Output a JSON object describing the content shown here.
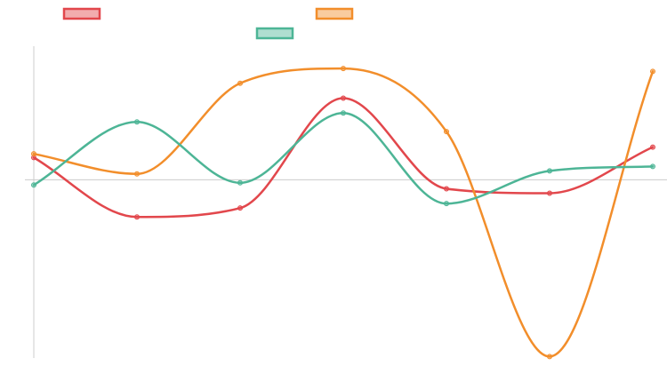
{
  "chart_data": {
    "type": "line",
    "title": "",
    "xlabel": "",
    "ylabel": "",
    "x": [
      0,
      1,
      2,
      3,
      4,
      5,
      6
    ],
    "grid": false,
    "legend": "top",
    "ylim": [
      -2.4,
      1.8
    ],
    "series": [
      {
        "color": "#e2474c",
        "values": [
          0.3,
          -0.5,
          -0.38,
          1.1,
          -0.12,
          -0.18,
          0.44
        ]
      },
      {
        "color": "#f28e2b",
        "values": [
          0.35,
          0.08,
          1.3,
          1.5,
          0.65,
          -2.38,
          1.46
        ]
      },
      {
        "color": "#4db596",
        "values": [
          -0.07,
          0.78,
          -0.04,
          0.9,
          -0.32,
          0.12,
          0.18
        ]
      }
    ]
  }
}
